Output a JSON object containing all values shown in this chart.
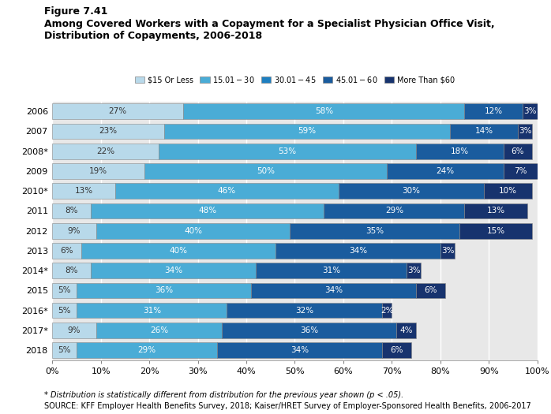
{
  "years": [
    "2006",
    "2007",
    "2008*",
    "2009",
    "2010*",
    "2011",
    "2012",
    "2013",
    "2014*",
    "2015",
    "2016*",
    "2017*",
    "2018"
  ],
  "segments": [
    {
      "label": "$15 Or Less",
      "values": [
        27,
        23,
        22,
        19,
        13,
        8,
        9,
        6,
        8,
        5,
        5,
        9,
        5
      ],
      "color": "#b8d9ea"
    },
    {
      "label": "$15.01 - $30",
      "values": [
        58,
        59,
        53,
        50,
        46,
        48,
        40,
        40,
        34,
        36,
        31,
        26,
        29
      ],
      "color": "#4aacd6"
    },
    {
      "label": "$30.01 - $45",
      "values": [
        0,
        0,
        0,
        0,
        0,
        0,
        0,
        0,
        0,
        0,
        0,
        0,
        0
      ],
      "color": "#1e7fc0"
    },
    {
      "label": "$45.01 - $60",
      "values": [
        12,
        14,
        18,
        24,
        30,
        29,
        35,
        34,
        31,
        34,
        32,
        36,
        34
      ],
      "color": "#1a5c9e"
    },
    {
      "label": "More Than $60",
      "values": [
        3,
        3,
        6,
        7,
        10,
        13,
        15,
        3,
        3,
        6,
        2,
        4,
        6
      ],
      "color": "#17336e"
    }
  ],
  "title_line1": "Figure 7.41",
  "title_line2": "Among Covered Workers with a Copayment for a Specialist Physician Office Visit,",
  "title_line3": "Distribution of Copayments, 2006-2018",
  "footnote1": "* Distribution is statistically different from distribution for the previous year shown (p < .05).",
  "footnote2": "SOURCE: KFF Employer Health Benefits Survey, 2018; Kaiser/HRET Survey of Employer-Sponsored Health Benefits, 2006-2017",
  "xticks": [
    0,
    10,
    20,
    30,
    40,
    50,
    60,
    70,
    80,
    90,
    100
  ],
  "xtick_labels": [
    "0%",
    "10%",
    "20%",
    "30%",
    "40%",
    "50%",
    "60%",
    "70%",
    "80%",
    "90%",
    "100%"
  ]
}
